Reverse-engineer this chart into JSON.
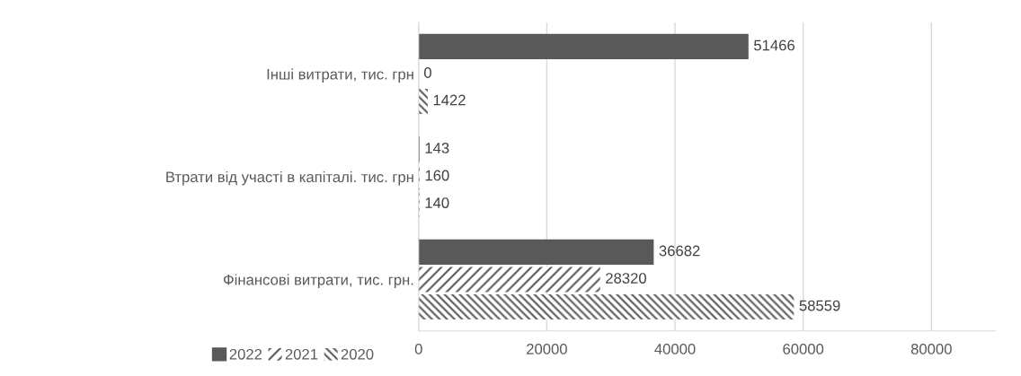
{
  "chart_data": {
    "type": "bar",
    "orientation": "horizontal",
    "categories": [
      "Інші витрати, тис. грн",
      "Втрати від участі в капіталі. тис. грн",
      "Фінансові витрати, тис. грн."
    ],
    "series": [
      {
        "name": "2022",
        "color": "#595959",
        "values": [
          51466,
          143,
          36682
        ]
      },
      {
        "name": "2021",
        "color": "#595959",
        "values": [
          0,
          160,
          28320
        ]
      },
      {
        "name": "2020",
        "color": "#595959",
        "values": [
          1422,
          140,
          58559
        ]
      }
    ],
    "xlim": [
      0,
      90000
    ],
    "xticks": [
      0,
      20000,
      40000,
      60000,
      80000
    ],
    "grid": "x",
    "legend": "bottom left",
    "data_labels": true
  }
}
